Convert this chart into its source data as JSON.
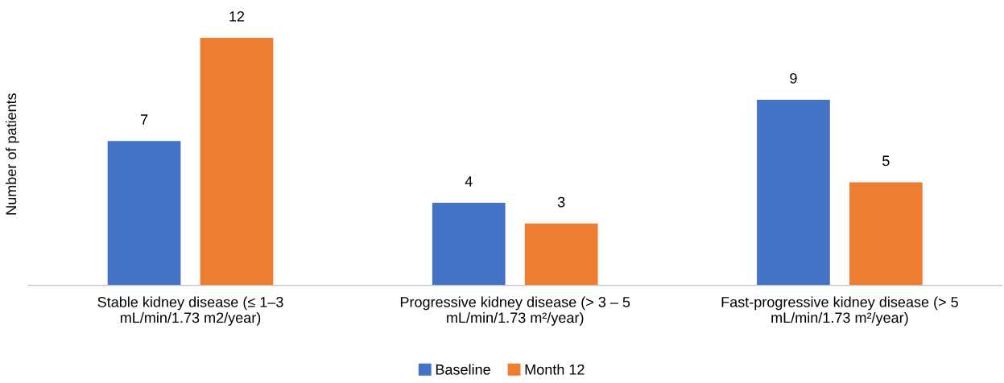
{
  "chart_data": {
    "type": "bar",
    "ylabel": "Number of patients",
    "categories": [
      "Stable kidney disease (≤ 1–3\nmL/min/1.73 m2/year)",
      "Progressive kidney disease (> 3 – 5\nmL/min/1.73 m²/year)",
      "Fast-progressive kidney disease (> 5\nmL/min/1.73 m²/year)"
    ],
    "series": [
      {
        "name": "Baseline",
        "color": "#4472c4",
        "values": [
          7,
          4,
          9
        ]
      },
      {
        "name": "Month 12",
        "color": "#ed7d31",
        "values": [
          12,
          3,
          5
        ]
      }
    ],
    "data_labels": true,
    "grid": false,
    "legend": "bottom"
  }
}
